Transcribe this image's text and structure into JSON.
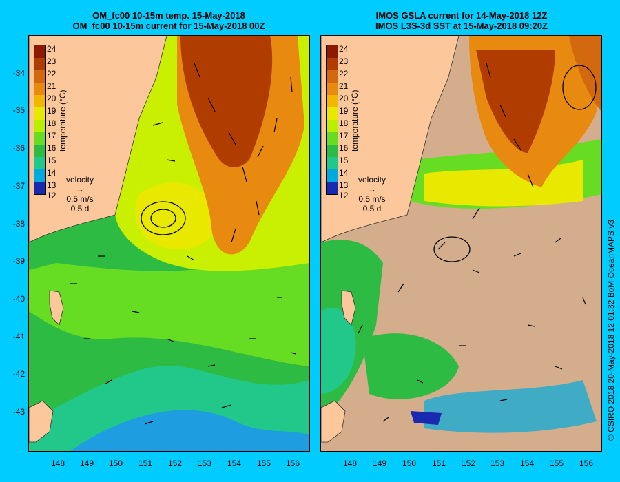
{
  "left_panel": {
    "title_line1": "OM_fc00 10-15m temp. 15-May-2018",
    "title_line2": "OM_fc00 10-15m current for 15-May-2018 00Z"
  },
  "right_panel": {
    "title_line1": "IMOS GSLA current for 14-May-2018 12Z",
    "title_line2": "IMOS L3S-3d SST at 15-May-2018 09:20Z"
  },
  "latitude_labels": [
    "-34",
    "-35",
    "-36",
    "-37",
    "-38",
    "-39",
    "-40",
    "-41",
    "-42",
    "-43"
  ],
  "longitude_labels": [
    "148",
    "149",
    "150",
    "151",
    "152",
    "153",
    "154",
    "155",
    "156"
  ],
  "colorbar": {
    "title": "temperature (°C)",
    "ticks": [
      "24",
      "23",
      "22",
      "21",
      "20",
      "19",
      "18",
      "17",
      "16",
      "15",
      "14",
      "13",
      "12"
    ],
    "colors": [
      "#8b1a00",
      "#b03c00",
      "#d2690f",
      "#e88a10",
      "#f2b800",
      "#e8e800",
      "#b8f000",
      "#66dd22",
      "#2ebb44",
      "#22c88a",
      "#00aadd",
      "#1e6edc",
      "#1a2ab0"
    ]
  },
  "velocity_legend": {
    "label": "velocity",
    "speed": "0.5 m/s",
    "duration": "0.5 d"
  },
  "credit": "© CSIRO 2018   20-May-2018 12:01:32 BoM OceanMAPS v3",
  "colors": {
    "background": "#00ccff",
    "land": "#fcc79a",
    "no_data": "#d3ad8c"
  }
}
